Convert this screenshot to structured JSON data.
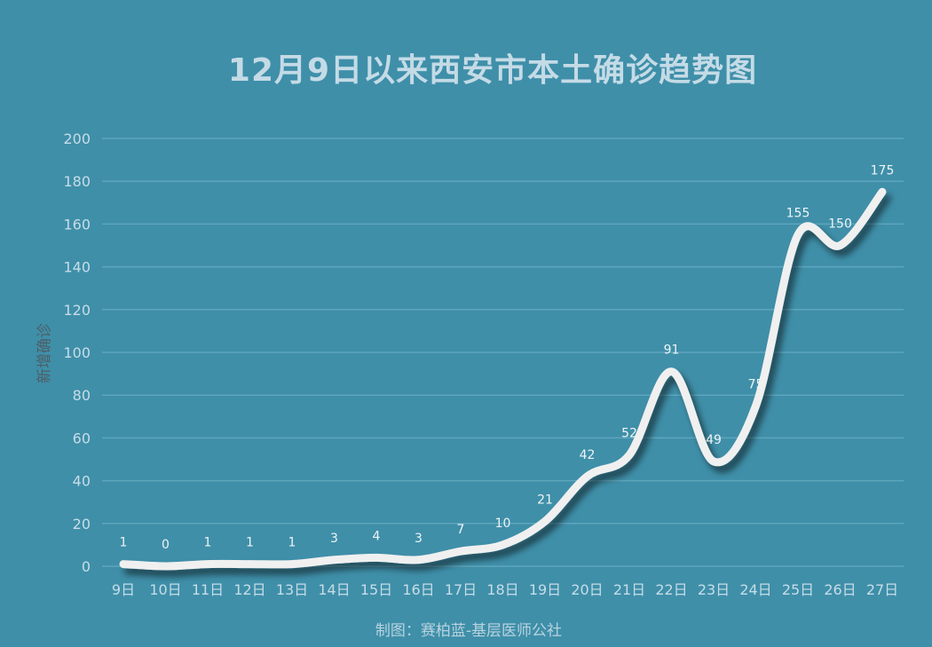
{
  "chart_data": {
    "type": "line",
    "title": "12月9日以来西安市本土确诊趋势图",
    "xlabel": "",
    "ylabel": "新增确诊",
    "categories": [
      "9日",
      "10日",
      "11日",
      "12日",
      "13日",
      "14日",
      "15日",
      "16日",
      "17日",
      "18日",
      "19日",
      "20日",
      "21日",
      "22日",
      "23日",
      "24日",
      "25日",
      "26日",
      "27日"
    ],
    "series": [
      {
        "values": [
          1,
          0,
          1,
          1,
          1,
          3,
          4,
          3,
          7,
          10,
          21,
          42,
          52,
          91,
          49,
          75,
          155,
          150,
          175
        ]
      }
    ],
    "ylim": [
      0,
      200
    ],
    "yticks": [
      0,
      20,
      40,
      60,
      80,
      100,
      120,
      140,
      160,
      180,
      200
    ],
    "grid": true,
    "smooth": true,
    "data_labels": true,
    "colors": {
      "background": "#3f8fa9",
      "line": "#f0f0f0",
      "grid": "#5fa6bc"
    }
  },
  "footer": "制图：赛柏蓝-基层医师公社"
}
